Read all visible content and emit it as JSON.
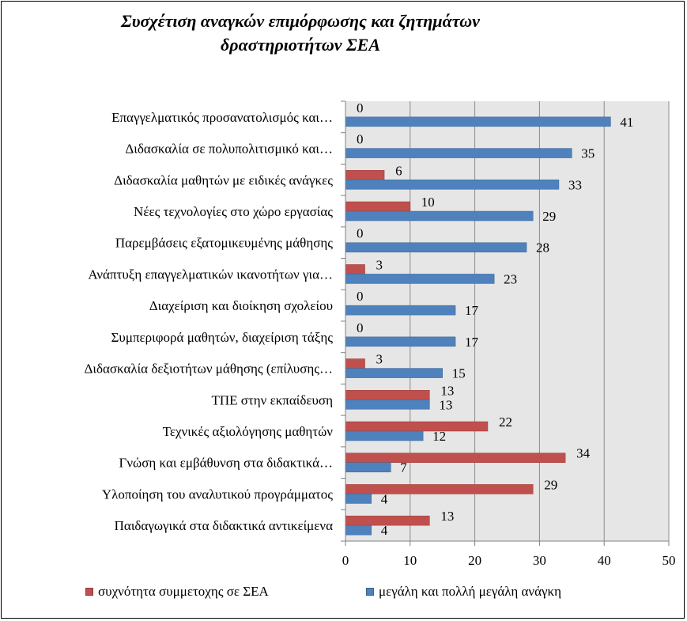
{
  "chart_data": {
    "type": "bar",
    "orientation": "horizontal",
    "title_lines": [
      "Συσχέτιση αναγκών επιμόρφωσης και ζητημάτων",
      "δραστηριοτήτων ΣΕΑ"
    ],
    "categories": [
      "Επαγγελματικός προσανατολισμός και…",
      "Διδασκαλία σε πολυπολιτισμικό και…",
      "Διδασκαλία μαθητών με ειδικές ανάγκες",
      "Νέες τεχνολογίες στο χώρο εργασίας",
      "Παρεμβάσεις εξατομικευμένης μάθησης",
      "Ανάπτυξη επαγγελματικών ικανοτήτων για…",
      "Διαχείριση και διοίκηση σχολείου",
      "Συμπεριφορά μαθητών, διαχείριση τάξης",
      "Διδασκαλία δεξιοτήτων μάθησης (επίλυσης…",
      "ΤΠΕ στην εκπαίδευση",
      "Τεχνικές αξιολόγησης μαθητών",
      "Γνώση και εμβάθυνση στα διδακτικά…",
      "Υλοποίηση του αναλυτικού προγράμματος",
      "Παιδαγωγικά στα διδακτικά αντικείμενα"
    ],
    "series": [
      {
        "name": "συχνότητα συμμετοχης σε ΣΕΑ",
        "color": "#c0504d",
        "values": [
          0,
          0,
          6,
          10,
          0,
          3,
          0,
          0,
          3,
          13,
          22,
          34,
          29,
          13
        ]
      },
      {
        "name": "μεγάλη και πολλή μεγάλη ανάγκη",
        "color": "#4f81bd",
        "values": [
          41,
          35,
          33,
          29,
          28,
          23,
          17,
          17,
          15,
          13,
          12,
          7,
          4,
          4
        ]
      }
    ],
    "xlim": [
      0,
      50
    ],
    "xticks": [
      "0",
      "10",
      "20",
      "30",
      "40",
      "50"
    ],
    "grid": true,
    "legend_position": "bottom"
  }
}
